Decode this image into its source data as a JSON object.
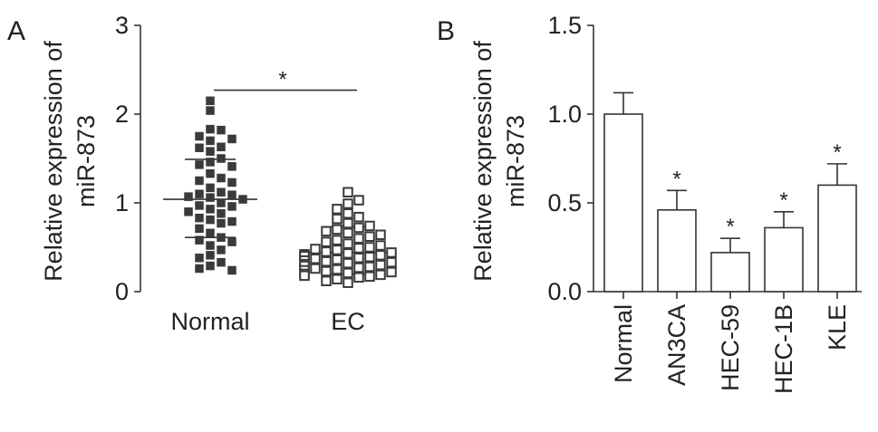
{
  "chart_data": [
    {
      "panel": "A",
      "type": "scatter",
      "ylabel": [
        "Relative expression of",
        "miR-873"
      ],
      "ylim": [
        0,
        3
      ],
      "yticks": [
        0,
        1,
        2,
        3
      ],
      "categories": [
        "Normal",
        "EC"
      ],
      "means": [
        1.04,
        0.44
      ],
      "sd_lower": [
        0.61,
        0.2
      ],
      "sd_upper": [
        1.49,
        0.73
      ],
      "significance": "*",
      "points": [
        {
          "group": "Normal",
          "marker": "filled-square",
          "values": [
            2.15,
            2.04,
            1.83,
            1.82,
            1.7,
            1.75,
            1.72,
            1.63,
            1.62,
            1.58,
            1.5,
            1.46,
            1.43,
            1.41,
            1.33,
            1.28,
            1.25,
            1.23,
            1.17,
            1.12,
            1.1,
            1.09,
            1.07,
            1.06,
            1.04,
            1.0,
            0.97,
            0.96,
            0.93,
            0.9,
            0.88,
            0.83,
            0.81,
            0.79,
            0.77,
            0.71,
            0.66,
            0.61,
            0.58,
            0.56,
            0.52,
            0.47,
            0.41,
            0.38,
            0.33,
            0.29,
            0.26,
            0.24
          ]
        },
        {
          "group": "EC",
          "marker": "open-square",
          "values": [
            1.12,
            1.03,
            0.99,
            0.93,
            0.88,
            0.84,
            0.82,
            0.77,
            0.74,
            0.72,
            0.7,
            0.68,
            0.66,
            0.64,
            0.62,
            0.6,
            0.58,
            0.56,
            0.54,
            0.52,
            0.5,
            0.49,
            0.48,
            0.47,
            0.45,
            0.44,
            0.43,
            0.42,
            0.41,
            0.4,
            0.39,
            0.38,
            0.37,
            0.36,
            0.35,
            0.34,
            0.33,
            0.32,
            0.31,
            0.3,
            0.29,
            0.28,
            0.27,
            0.26,
            0.25,
            0.24,
            0.23,
            0.22,
            0.21,
            0.2,
            0.19,
            0.18,
            0.17,
            0.16,
            0.14,
            0.12,
            0.1
          ]
        }
      ]
    },
    {
      "panel": "B",
      "type": "bar",
      "ylabel": [
        "Relative expression of",
        "miR-873"
      ],
      "ylim": [
        0,
        1.5
      ],
      "yticks": [
        0.0,
        0.5,
        1.0,
        1.5
      ],
      "ytick_labels": [
        "0.0",
        "0.5",
        "1.0",
        "1.5"
      ],
      "categories": [
        "Normal",
        "AN3CA",
        "HEC-59",
        "HEC-1B",
        "KLE"
      ],
      "values": [
        1.0,
        0.46,
        0.22,
        0.36,
        0.6
      ],
      "errors": [
        0.12,
        0.11,
        0.08,
        0.09,
        0.12
      ],
      "significance": [
        "",
        "*",
        "*",
        "*",
        "*"
      ]
    }
  ]
}
